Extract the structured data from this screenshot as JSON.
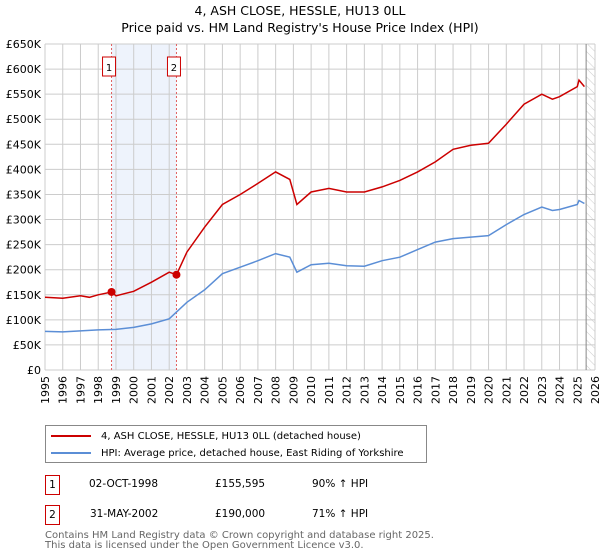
{
  "title": "4, ASH CLOSE, HESSLE, HU13 0LL",
  "subtitle": "Price paid vs. HM Land Registry's House Price Index (HPI)",
  "colors": {
    "property": "#cc0000",
    "hpi": "#5b8ed6",
    "shade": "#eef3fc",
    "grid": "#cccccc"
  },
  "chart_data": {
    "type": "line",
    "title": "Price paid vs. HM Land Registry's House Price Index (HPI)",
    "xlim": [
      1995,
      2026
    ],
    "ylim": [
      0,
      650000
    ],
    "grid": true,
    "x_ticks": [
      "1995",
      "1996",
      "1997",
      "1998",
      "1999",
      "2000",
      "2001",
      "2002",
      "2003",
      "2004",
      "2005",
      "2006",
      "2007",
      "2008",
      "2009",
      "2010",
      "2011",
      "2012",
      "2013",
      "2014",
      "2015",
      "2016",
      "2017",
      "2018",
      "2019",
      "2020",
      "2021",
      "2022",
      "2023",
      "2024",
      "2025",
      "2026"
    ],
    "y_ticks": [
      {
        "v": 0,
        "label": "£0"
      },
      {
        "v": 50000,
        "label": "£50K"
      },
      {
        "v": 100000,
        "label": "£100K"
      },
      {
        "v": 150000,
        "label": "£150K"
      },
      {
        "v": 200000,
        "label": "£200K"
      },
      {
        "v": 250000,
        "label": "£250K"
      },
      {
        "v": 300000,
        "label": "£300K"
      },
      {
        "v": 350000,
        "label": "£350K"
      },
      {
        "v": 400000,
        "label": "£400K"
      },
      {
        "v": 450000,
        "label": "£450K"
      },
      {
        "v": 500000,
        "label": "£500K"
      },
      {
        "v": 550000,
        "label": "£550K"
      },
      {
        "v": 600000,
        "label": "£600K"
      },
      {
        "v": 650000,
        "label": "£650K"
      }
    ],
    "series": [
      {
        "name": "4, ASH CLOSE, HESSLE, HU13 0LL (detached house)",
        "color": "#cc0000",
        "x": [
          1995,
          1996,
          1997,
          1997.5,
          1998,
          1998.75,
          1999,
          2000,
          2001,
          2002,
          2002.41,
          2003,
          2004,
          2005,
          2006,
          2007,
          2008,
          2008.8,
          2009.2,
          2010,
          2011,
          2012,
          2013,
          2014,
          2015,
          2016,
          2017,
          2018,
          2019,
          2020,
          2021,
          2022,
          2023,
          2023.6,
          2024,
          2025,
          2025.1,
          2025.4
        ],
        "y": [
          145000,
          143000,
          148000,
          145000,
          150000,
          155595,
          148000,
          157000,
          175000,
          195000,
          190000,
          235000,
          285000,
          330000,
          350000,
          372000,
          395000,
          380000,
          330000,
          355000,
          362000,
          355000,
          355000,
          365000,
          378000,
          395000,
          415000,
          440000,
          448000,
          452000,
          490000,
          530000,
          550000,
          540000,
          545000,
          565000,
          578000,
          565000
        ]
      },
      {
        "name": "HPI: Average price, detached house, East Riding of Yorkshire",
        "color": "#5b8ed6",
        "x": [
          1995,
          1996,
          1997,
          1998,
          1999,
          2000,
          2001,
          2002,
          2003,
          2004,
          2005,
          2006,
          2007,
          2008,
          2008.8,
          2009.2,
          2010,
          2011,
          2012,
          2013,
          2014,
          2015,
          2016,
          2017,
          2018,
          2019,
          2020,
          2021,
          2022,
          2023,
          2023.6,
          2024,
          2025,
          2025.1,
          2025.4
        ],
        "y": [
          77000,
          76000,
          78000,
          80000,
          81000,
          85000,
          92000,
          102000,
          135000,
          160000,
          192000,
          205000,
          218000,
          232000,
          225000,
          195000,
          210000,
          213000,
          208000,
          207000,
          218000,
          225000,
          240000,
          255000,
          262000,
          265000,
          268000,
          290000,
          310000,
          325000,
          318000,
          320000,
          330000,
          338000,
          332000
        ]
      }
    ],
    "sales": [
      {
        "label": "1",
        "x": 1998.75,
        "y": 155595
      },
      {
        "label": "2",
        "x": 2002.41,
        "y": 190000
      }
    ],
    "shaded_range": [
      1998.75,
      2002.41
    ],
    "future_hatch_from": 2025.5
  },
  "legend": [
    {
      "label": "4, ASH CLOSE, HESSLE, HU13 0LL (detached house)"
    },
    {
      "label": "HPI: Average price, detached house, East Riding of Yorkshire"
    }
  ],
  "transactions": [
    {
      "n": "1",
      "date": "02-OCT-1998",
      "price": "£155,595",
      "hpi": "90% ↑ HPI"
    },
    {
      "n": "2",
      "date": "31-MAY-2002",
      "price": "£190,000",
      "hpi": "71% ↑ HPI"
    }
  ],
  "footer": {
    "line1": "Contains HM Land Registry data © Crown copyright and database right 2025.",
    "line2": "This data is licensed under the Open Government Licence v3.0."
  }
}
